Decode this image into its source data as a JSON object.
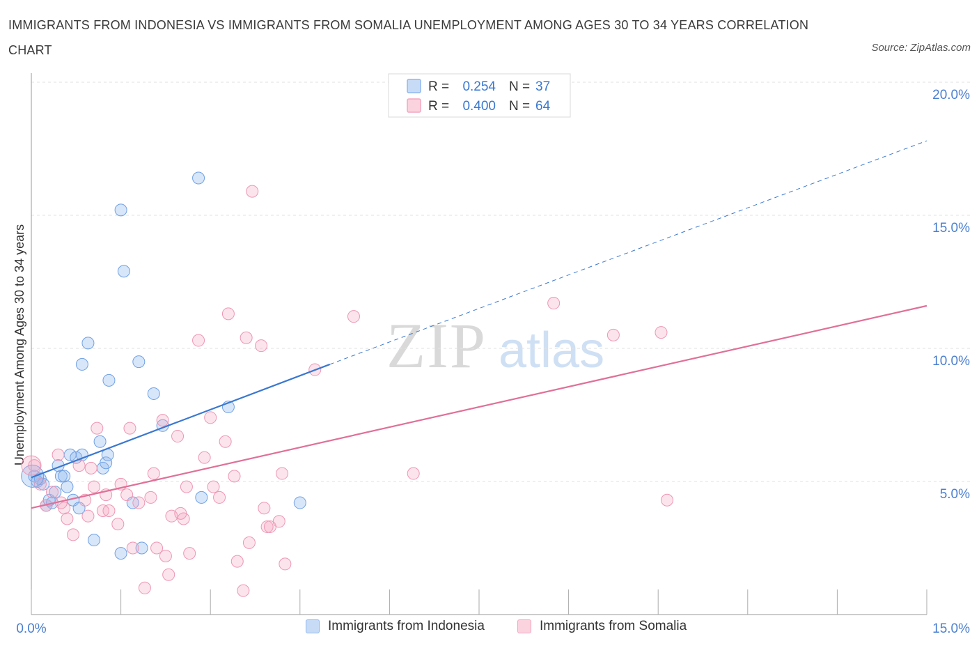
{
  "chart_data": {
    "type": "scatter",
    "title": "IMMIGRANTS FROM INDONESIA VS IMMIGRANTS FROM SOMALIA UNEMPLOYMENT AMONG AGES 30 TO 34 YEARS CORRELATION CHART",
    "source": "Source: ZipAtlas.com",
    "watermark": "ZIPatlas",
    "xlabel": "",
    "ylabel": "Unemployment Among Ages 30 to 34 years",
    "xlim": [
      0,
      15
    ],
    "ylim": [
      0,
      20
    ],
    "x_tick_labels": [
      "0.0%",
      "15.0%"
    ],
    "y_ticks": [
      5,
      10,
      15,
      20
    ],
    "y_tick_labels": [
      "5.0%",
      "10.0%",
      "15.0%",
      "20.0%"
    ],
    "grid": true,
    "legend_position": "top-center",
    "series": [
      {
        "name": "Immigrants from Indonesia",
        "color": "#8fb8ee",
        "line_color": "#3a78d0",
        "r_label": "R = ",
        "r_value": "0.254",
        "n_label": "N = ",
        "n_value": "37",
        "trend": {
          "x0": 0,
          "y0": 5.15,
          "x1": 5.0,
          "y1": 9.4,
          "dash_to_x": 15,
          "dash_to_y": 17.8
        },
        "points": [
          [
            0.05,
            5.2
          ],
          [
            0.1,
            5.0
          ],
          [
            0.2,
            4.9
          ],
          [
            0.25,
            4.1
          ],
          [
            0.35,
            4.2
          ],
          [
            0.45,
            5.6
          ],
          [
            0.5,
            5.2
          ],
          [
            0.6,
            4.8
          ],
          [
            0.65,
            6.0
          ],
          [
            0.7,
            4.3
          ],
          [
            0.75,
            5.9
          ],
          [
            0.8,
            4.0
          ],
          [
            0.85,
            6.0
          ],
          [
            0.95,
            10.2
          ],
          [
            0.85,
            9.4
          ],
          [
            1.05,
            2.8
          ],
          [
            1.15,
            6.5
          ],
          [
            1.2,
            5.5
          ],
          [
            1.25,
            5.7
          ],
          [
            1.3,
            8.8
          ],
          [
            1.28,
            6.0
          ],
          [
            1.5,
            15.2
          ],
          [
            1.55,
            12.9
          ],
          [
            1.5,
            2.3
          ],
          [
            1.7,
            4.2
          ],
          [
            1.8,
            9.5
          ],
          [
            1.85,
            2.5
          ],
          [
            2.05,
            8.3
          ],
          [
            2.2,
            7.1
          ],
          [
            2.8,
            16.4
          ],
          [
            2.85,
            4.4
          ],
          [
            3.3,
            7.8
          ],
          [
            4.5,
            4.2
          ],
          [
            0.3,
            4.3
          ],
          [
            0.15,
            5.1
          ],
          [
            0.55,
            5.2
          ],
          [
            0.4,
            4.6
          ]
        ]
      },
      {
        "name": "Immigrants from Somalia",
        "color": "#f4a6bf",
        "line_color": "#e07098",
        "r_label": "R = ",
        "r_value": "0.400",
        "n_label": "N = ",
        "n_value": "64",
        "trend": {
          "x0": 0,
          "y0": 4.0,
          "x1": 15,
          "y1": 11.6
        },
        "points": [
          [
            0.05,
            5.6
          ],
          [
            0.25,
            4.1
          ],
          [
            0.35,
            4.6
          ],
          [
            0.45,
            6.0
          ],
          [
            0.55,
            4.0
          ],
          [
            0.6,
            3.6
          ],
          [
            0.7,
            3.0
          ],
          [
            0.8,
            5.6
          ],
          [
            0.9,
            4.3
          ],
          [
            0.95,
            3.7
          ],
          [
            1.05,
            4.8
          ],
          [
            1.1,
            7.0
          ],
          [
            1.2,
            3.9
          ],
          [
            1.25,
            4.5
          ],
          [
            1.3,
            3.9
          ],
          [
            1.45,
            3.4
          ],
          [
            1.5,
            4.9
          ],
          [
            1.6,
            4.5
          ],
          [
            1.65,
            7.0
          ],
          [
            1.7,
            2.5
          ],
          [
            1.8,
            4.2
          ],
          [
            1.9,
            1.0
          ],
          [
            2.0,
            4.4
          ],
          [
            2.05,
            5.3
          ],
          [
            2.1,
            2.5
          ],
          [
            2.2,
            7.3
          ],
          [
            2.25,
            2.2
          ],
          [
            2.3,
            1.5
          ],
          [
            2.35,
            3.7
          ],
          [
            2.45,
            6.7
          ],
          [
            2.55,
            3.6
          ],
          [
            2.6,
            4.8
          ],
          [
            2.65,
            2.3
          ],
          [
            2.8,
            10.3
          ],
          [
            2.9,
            5.9
          ],
          [
            3.0,
            7.4
          ],
          [
            3.05,
            4.8
          ],
          [
            3.15,
            4.4
          ],
          [
            3.25,
            6.5
          ],
          [
            3.3,
            11.3
          ],
          [
            3.4,
            5.2
          ],
          [
            3.45,
            2.0
          ],
          [
            3.55,
            0.9
          ],
          [
            3.6,
            10.4
          ],
          [
            3.65,
            2.7
          ],
          [
            3.7,
            15.9
          ],
          [
            3.85,
            10.1
          ],
          [
            3.95,
            3.3
          ],
          [
            4.0,
            3.3
          ],
          [
            4.15,
            3.5
          ],
          [
            4.2,
            5.3
          ],
          [
            4.25,
            1.9
          ],
          [
            4.75,
            9.2
          ],
          [
            5.4,
            11.2
          ],
          [
            6.4,
            5.3
          ],
          [
            8.75,
            11.7
          ],
          [
            9.75,
            10.5
          ],
          [
            10.55,
            10.6
          ],
          [
            10.65,
            4.3
          ],
          [
            0.15,
            4.9
          ],
          [
            0.5,
            4.2
          ],
          [
            1.0,
            5.5
          ],
          [
            2.5,
            3.8
          ],
          [
            3.9,
            4.0
          ]
        ]
      }
    ]
  }
}
